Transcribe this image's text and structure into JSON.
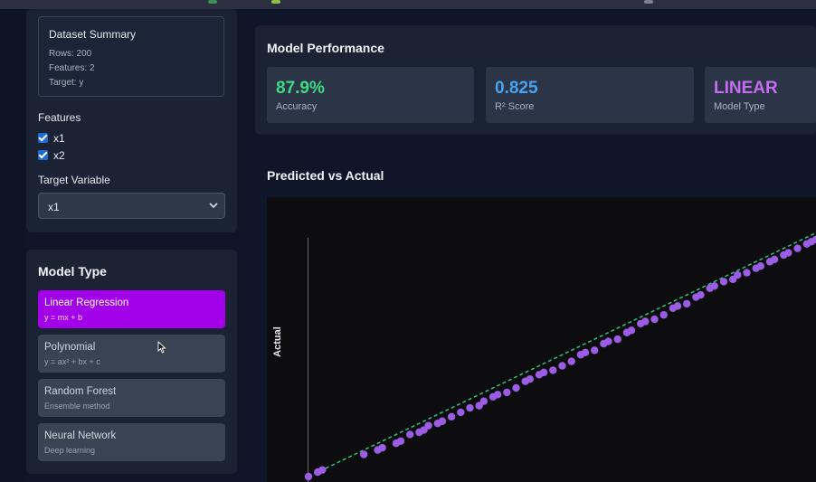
{
  "sidebar": {
    "dataset_summary": {
      "title": "Dataset Summary",
      "rows": "Rows: 200",
      "features": "Features: 2",
      "target": "Target: y"
    },
    "features_label": "Features",
    "features": [
      {
        "label": "x1",
        "checked": true
      },
      {
        "label": "x2",
        "checked": true
      }
    ],
    "target_label": "Target Variable",
    "target_value": "x1",
    "model_type_title": "Model Type",
    "models": [
      {
        "name": "Linear Regression",
        "formula": "y = mx + b",
        "active": true
      },
      {
        "name": "Polynomial",
        "formula": "y = ax² + bx + c",
        "active": false
      },
      {
        "name": "Random Forest",
        "formula": "Ensemble method",
        "active": false
      },
      {
        "name": "Neural Network",
        "formula": "Deep learning",
        "active": false
      }
    ]
  },
  "performance": {
    "title": "Model Performance",
    "metrics": [
      {
        "value": "87.9%",
        "label": "Accuracy",
        "color": "#3ddc84"
      },
      {
        "value": "0.825",
        "label": "R² Score",
        "color": "#4aa3f0"
      },
      {
        "value": "LINEAR",
        "label": "Model Type",
        "color": "#c56cf0"
      }
    ]
  },
  "chart": {
    "title": "Predicted vs Actual",
    "ylabel": "Actual"
  },
  "chart_data": {
    "type": "scatter",
    "title": "Predicted vs Actual",
    "xlabel": "",
    "ylabel": "Actual",
    "point_color": "#9b5de5",
    "fit_line_color": "#2ec47a",
    "grid": false,
    "points": [
      [
        0.0,
        0.0
      ],
      [
        0.02,
        0.02
      ],
      [
        0.03,
        0.03
      ],
      [
        0.12,
        0.1
      ],
      [
        0.15,
        0.12
      ],
      [
        0.16,
        0.13
      ],
      [
        0.19,
        0.15
      ],
      [
        0.2,
        0.16
      ],
      [
        0.22,
        0.19
      ],
      [
        0.24,
        0.2
      ],
      [
        0.25,
        0.21
      ],
      [
        0.26,
        0.23
      ],
      [
        0.28,
        0.24
      ],
      [
        0.29,
        0.25
      ],
      [
        0.31,
        0.27
      ],
      [
        0.33,
        0.29
      ],
      [
        0.35,
        0.31
      ],
      [
        0.37,
        0.32
      ],
      [
        0.38,
        0.34
      ],
      [
        0.4,
        0.36
      ],
      [
        0.41,
        0.37
      ],
      [
        0.43,
        0.38
      ],
      [
        0.45,
        0.4
      ],
      [
        0.47,
        0.43
      ],
      [
        0.48,
        0.44
      ],
      [
        0.5,
        0.46
      ],
      [
        0.51,
        0.47
      ],
      [
        0.53,
        0.48
      ],
      [
        0.55,
        0.5
      ],
      [
        0.57,
        0.52
      ],
      [
        0.59,
        0.55
      ],
      [
        0.6,
        0.56
      ],
      [
        0.62,
        0.57
      ],
      [
        0.64,
        0.6
      ],
      [
        0.65,
        0.61
      ],
      [
        0.67,
        0.62
      ],
      [
        0.69,
        0.65
      ],
      [
        0.7,
        0.66
      ],
      [
        0.72,
        0.69
      ],
      [
        0.73,
        0.7
      ],
      [
        0.75,
        0.71
      ],
      [
        0.77,
        0.73
      ],
      [
        0.79,
        0.76
      ],
      [
        0.8,
        0.77
      ],
      [
        0.82,
        0.78
      ],
      [
        0.84,
        0.81
      ],
      [
        0.85,
        0.82
      ],
      [
        0.87,
        0.85
      ],
      [
        0.88,
        0.86
      ],
      [
        0.9,
        0.88
      ],
      [
        0.92,
        0.89
      ],
      [
        0.93,
        0.91
      ],
      [
        0.95,
        0.92
      ],
      [
        0.97,
        0.94
      ],
      [
        0.98,
        0.95
      ],
      [
        1.0,
        0.97
      ],
      [
        1.01,
        0.98
      ],
      [
        1.03,
        1.0
      ],
      [
        1.04,
        1.01
      ],
      [
        1.06,
        1.03
      ],
      [
        1.08,
        1.05
      ],
      [
        1.09,
        1.06
      ],
      [
        1.1,
        1.07
      ]
    ]
  }
}
